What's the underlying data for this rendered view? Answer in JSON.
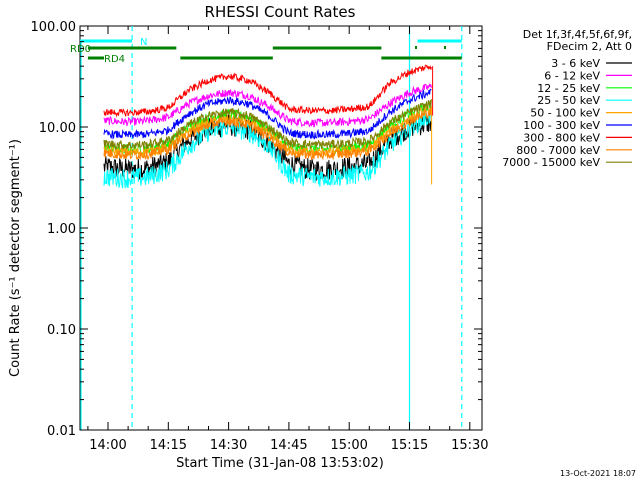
{
  "chart_data": {
    "type": "line",
    "title": "RHESSI Count Rates",
    "xlabel": "Start Time (31-Jan-08 13:53:02)",
    "ylabel": "Count Rate (s⁻¹ detector segment⁻¹)",
    "yscale": "log",
    "ylim": [
      0.01,
      100
    ],
    "xlim": [
      "13:53:02",
      "15:33:02"
    ],
    "x_ticks": [
      "14:00",
      "14:15",
      "14:30",
      "14:45",
      "15:00",
      "15:15",
      "15:30"
    ],
    "y_ticks": [
      "0.01",
      "0.10",
      "1.00",
      "10.00",
      "100.00"
    ],
    "legend_position": "top-right, outside plot",
    "legend_header": [
      "Det 1f,3f,4f,5f,6f,9f,",
      "FDecim 2, Att 0"
    ],
    "x": [
      "14:00",
      "14:05",
      "14:10",
      "14:15",
      "14:20",
      "14:25",
      "14:30",
      "14:35",
      "14:40",
      "14:45",
      "14:50",
      "14:55",
      "15:00",
      "15:05",
      "15:10",
      "15:15",
      "15:20"
    ],
    "series": [
      {
        "name": "3 - 6 keV",
        "color": "#000000",
        "values": [
          4.0,
          3.8,
          3.9,
          4.5,
          7.5,
          9.5,
          10.5,
          9.5,
          7.0,
          4.3,
          3.8,
          3.8,
          4.0,
          4.3,
          7.5,
          10.0,
          11.0
        ]
      },
      {
        "name": "6 - 12 keV",
        "color": "#ff00ff",
        "values": [
          11.5,
          11.2,
          11.5,
          12.5,
          17.0,
          20.5,
          22.0,
          20.5,
          16.0,
          11.5,
          11.0,
          11.0,
          11.3,
          12.0,
          17.0,
          22.0,
          25.0
        ]
      },
      {
        "name": "12 - 25 keV",
        "color": "#00ff00",
        "values": [
          6.2,
          6.0,
          6.1,
          6.8,
          10.0,
          12.5,
          13.5,
          12.5,
          9.5,
          6.3,
          6.0,
          6.0,
          6.2,
          6.6,
          10.5,
          13.5,
          16.0
        ]
      },
      {
        "name": "25 - 50 keV",
        "color": "#00ffff",
        "values": [
          3.2,
          3.1,
          3.2,
          3.8,
          6.5,
          9.0,
          10.0,
          9.0,
          6.5,
          3.4,
          3.2,
          3.2,
          3.3,
          3.6,
          6.5,
          10.0,
          13.0
        ]
      },
      {
        "name": "50 - 100 keV",
        "color": "#ffa500",
        "values": [
          5.8,
          5.6,
          5.7,
          6.3,
          9.0,
          11.0,
          12.0,
          11.0,
          8.5,
          5.9,
          5.6,
          5.6,
          5.8,
          6.1,
          9.0,
          12.0,
          15.0
        ]
      },
      {
        "name": "100 - 300 keV",
        "color": "#0000ff",
        "values": [
          8.5,
          8.3,
          8.5,
          9.3,
          13.5,
          17.0,
          18.5,
          17.0,
          13.0,
          8.7,
          8.4,
          8.4,
          8.6,
          9.2,
          14.0,
          18.5,
          22.0
        ]
      },
      {
        "name": "300 - 800 keV",
        "color": "#ff0000",
        "values": [
          14.0,
          13.8,
          14.2,
          15.5,
          23.0,
          29.0,
          32.0,
          29.0,
          22.0,
          15.0,
          14.5,
          14.5,
          15.0,
          16.0,
          27.0,
          35.0,
          40.0
        ]
      },
      {
        "name": "800 - 7000 keV",
        "color": "#ff8000",
        "values": [
          5.5,
          5.3,
          5.4,
          6.0,
          8.5,
          10.5,
          11.5,
          10.5,
          8.0,
          5.6,
          5.3,
          5.3,
          5.5,
          5.8,
          8.5,
          11.5,
          14.0
        ]
      },
      {
        "name": "7000 - 15000 keV",
        "color": "#808000",
        "values": [
          6.8,
          6.6,
          6.7,
          7.4,
          10.5,
          13.0,
          14.0,
          13.0,
          10.0,
          7.0,
          6.7,
          6.7,
          6.9,
          7.3,
          11.0,
          14.0,
          17.0
        ]
      }
    ],
    "flag_labels": [
      "N",
      "RD0",
      "RD4"
    ],
    "flag_colors": {
      "N": "#00ffff",
      "RD0": "#008000",
      "RD4": "#008000"
    },
    "flag_spans": {
      "N": [
        [
          "13:53:02",
          "14:06"
        ],
        [
          "15:17",
          "15:28"
        ]
      ],
      "RD0": [
        [
          "13:55",
          "14:17"
        ],
        [
          "14:41",
          "15:08"
        ]
      ],
      "RD4": [
        [
          "13:55",
          "13:59"
        ],
        [
          "14:18",
          "14:41"
        ],
        [
          "15:08",
          "15:28"
        ]
      ]
    },
    "vertical_markers": [
      {
        "time": "14:06",
        "style": "dashed",
        "color": "#00ffff"
      },
      {
        "time": "15:15",
        "style": "solid",
        "color": "#00ffff"
      },
      {
        "time": "15:28",
        "style": "dashed",
        "color": "#00ffff"
      }
    ]
  },
  "timestamp": "13-Oct-2021 18:07"
}
